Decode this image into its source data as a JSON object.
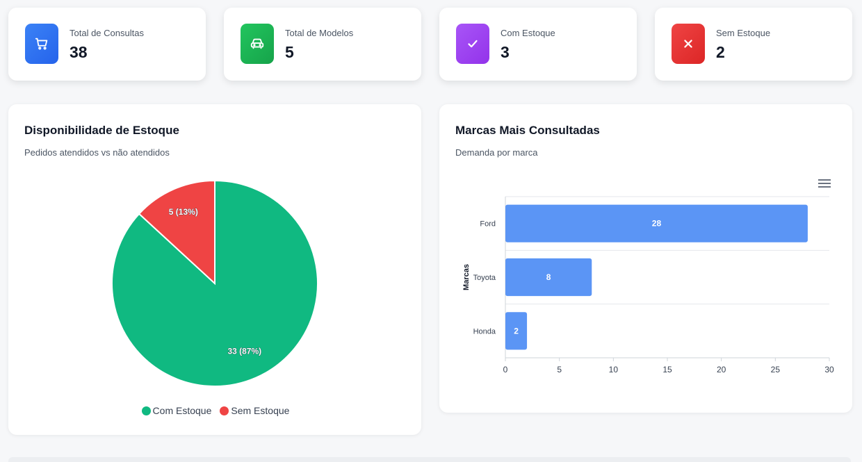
{
  "stats": [
    {
      "label": "Total de Consultas",
      "value": "38",
      "icon": "cart-icon",
      "color": "#3b82f6"
    },
    {
      "label": "Total de Modelos",
      "value": "5",
      "icon": "car-icon",
      "color": "#22c55e"
    },
    {
      "label": "Com Estoque",
      "value": "3",
      "icon": "check-icon",
      "color": "#a855f7"
    },
    {
      "label": "Sem Estoque",
      "value": "2",
      "icon": "x-icon",
      "color": "#ef4444"
    }
  ],
  "stock_panel": {
    "title": "Disponibilidade de Estoque",
    "subtitle": "Pedidos atendidos vs não atendidos"
  },
  "brands_panel": {
    "title": "Marcas Mais Consultadas",
    "subtitle": "Demanda por marca",
    "menu_icon": "hamburger-menu-icon"
  },
  "chart_data": [
    {
      "type": "pie",
      "labels": [
        "Com Estoque",
        "Sem Estoque"
      ],
      "values": [
        33,
        5
      ],
      "data_labels": [
        "33 (87%)",
        "5 (13%)"
      ],
      "colors": [
        "#10b981",
        "#ef4444"
      ],
      "legend": "bottom"
    },
    {
      "type": "bar",
      "orientation": "horizontal",
      "categories": [
        "Ford",
        "Toyota",
        "Honda"
      ],
      "values": [
        28,
        8,
        2
      ],
      "ylabel": "Marcas",
      "xlim": [
        0,
        30
      ],
      "x_ticks": [
        0,
        5,
        10,
        15,
        20,
        25,
        30
      ],
      "bar_color": "#5b95f5",
      "grid": true
    }
  ]
}
